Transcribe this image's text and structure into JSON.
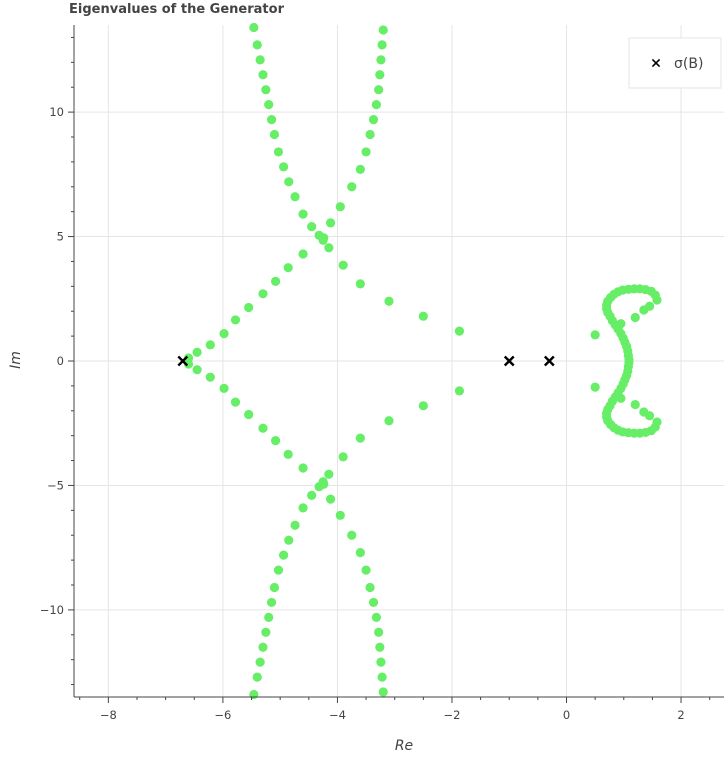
{
  "chart_data": {
    "type": "scatter",
    "title": "Eigenvalues of the Generator",
    "xlabel": "Re",
    "ylabel": "Im",
    "xlim": [
      -8.6,
      2.75
    ],
    "ylim": [
      -13.5,
      13.5
    ],
    "x_ticks": [
      -8,
      -6,
      -4,
      -2,
      0,
      2
    ],
    "x_tick_labels": [
      "−8",
      "−6",
      "−4",
      "−2",
      "0",
      "2"
    ],
    "y_ticks": [
      -10,
      -5,
      0,
      5,
      10
    ],
    "y_tick_labels": [
      "−10",
      "−5",
      "0",
      "5",
      "10"
    ],
    "grid": true,
    "legend_position": "top-right",
    "colors": {
      "generator": "#66ee66",
      "sigma_b": "#000000",
      "grid": "#e5e5e5",
      "axis": "#444444"
    },
    "series": [
      {
        "name": "",
        "marker": "circle",
        "color": "#66ee66",
        "points": [
          [
            -5.46,
            13.4
          ],
          [
            -5.4,
            12.7
          ],
          [
            -5.35,
            12.1
          ],
          [
            -5.3,
            11.5
          ],
          [
            -5.25,
            10.9
          ],
          [
            -5.2,
            10.3
          ],
          [
            -5.15,
            9.7
          ],
          [
            -5.1,
            9.1
          ],
          [
            -5.03,
            8.4
          ],
          [
            -4.94,
            7.8
          ],
          [
            -4.85,
            7.2
          ],
          [
            -4.74,
            6.6
          ],
          [
            -4.6,
            5.9
          ],
          [
            -4.45,
            5.4
          ],
          [
            -4.32,
            5.05
          ],
          [
            -4.25,
            4.85
          ],
          [
            -3.2,
            13.3
          ],
          [
            -3.22,
            12.7
          ],
          [
            -3.24,
            12.1
          ],
          [
            -3.26,
            11.5
          ],
          [
            -3.28,
            10.9
          ],
          [
            -3.32,
            10.3
          ],
          [
            -3.37,
            9.7
          ],
          [
            -3.43,
            9.1
          ],
          [
            -3.5,
            8.4
          ],
          [
            -3.6,
            7.7
          ],
          [
            -3.75,
            7.0
          ],
          [
            -3.95,
            6.2
          ],
          [
            -4.12,
            5.55
          ],
          [
            -4.24,
            4.95
          ],
          [
            -4.15,
            4.55
          ],
          [
            -3.9,
            3.85
          ],
          [
            -3.6,
            3.1
          ],
          [
            -3.1,
            2.4
          ],
          [
            -2.5,
            1.8
          ],
          [
            -1.87,
            1.2
          ],
          [
            -4.6,
            4.3
          ],
          [
            -4.86,
            3.75
          ],
          [
            -5.08,
            3.2
          ],
          [
            -5.3,
            2.7
          ],
          [
            -5.55,
            2.15
          ],
          [
            -5.78,
            1.65
          ],
          [
            -5.98,
            1.1
          ],
          [
            -6.22,
            0.65
          ],
          [
            -6.45,
            0.35
          ],
          [
            -6.6,
            0.12
          ],
          [
            -6.6,
            -0.12
          ],
          [
            -6.45,
            -0.35
          ],
          [
            -6.22,
            -0.65
          ],
          [
            -5.98,
            -1.1
          ],
          [
            -5.78,
            -1.65
          ],
          [
            -5.55,
            -2.15
          ],
          [
            -5.3,
            -2.7
          ],
          [
            -5.08,
            -3.2
          ],
          [
            -4.86,
            -3.75
          ],
          [
            -4.6,
            -4.3
          ],
          [
            -1.87,
            -1.2
          ],
          [
            -2.5,
            -1.8
          ],
          [
            -3.1,
            -2.4
          ],
          [
            -3.6,
            -3.1
          ],
          [
            -3.9,
            -3.85
          ],
          [
            -4.15,
            -4.55
          ],
          [
            -4.24,
            -4.95
          ],
          [
            -4.12,
            -5.55
          ],
          [
            -3.95,
            -6.2
          ],
          [
            -3.75,
            -7.0
          ],
          [
            -3.6,
            -7.7
          ],
          [
            -3.5,
            -8.4
          ],
          [
            -3.43,
            -9.1
          ],
          [
            -3.37,
            -9.7
          ],
          [
            -3.32,
            -10.3
          ],
          [
            -3.28,
            -10.9
          ],
          [
            -3.26,
            -11.5
          ],
          [
            -3.24,
            -12.1
          ],
          [
            -3.22,
            -12.7
          ],
          [
            -3.2,
            -13.3
          ],
          [
            -4.25,
            -4.85
          ],
          [
            -4.32,
            -5.05
          ],
          [
            -4.45,
            -5.4
          ],
          [
            -4.6,
            -5.9
          ],
          [
            -4.74,
            -6.6
          ],
          [
            -4.85,
            -7.2
          ],
          [
            -4.94,
            -7.8
          ],
          [
            -5.03,
            -8.4
          ],
          [
            -5.1,
            -9.1
          ],
          [
            -5.15,
            -9.7
          ],
          [
            -5.2,
            -10.3
          ],
          [
            -5.25,
            -10.9
          ],
          [
            -5.3,
            -11.5
          ],
          [
            -5.35,
            -12.1
          ],
          [
            -5.4,
            -12.7
          ],
          [
            -5.46,
            -13.4
          ],
          [
            0.5,
            1.05
          ],
          [
            0.5,
            -1.05
          ],
          [
            0.95,
            1.5
          ],
          [
            0.95,
            -1.5
          ],
          [
            1.2,
            1.75
          ],
          [
            1.2,
            -1.75
          ],
          [
            1.35,
            2.05
          ],
          [
            1.35,
            -2.05
          ],
          [
            1.45,
            2.2
          ],
          [
            1.45,
            -2.2
          ],
          [
            1.58,
            2.45
          ],
          [
            1.55,
            2.65
          ],
          [
            1.48,
            2.8
          ],
          [
            1.38,
            2.87
          ],
          [
            1.28,
            2.9
          ],
          [
            1.18,
            2.9
          ],
          [
            1.08,
            2.88
          ],
          [
            0.98,
            2.85
          ],
          [
            0.9,
            2.78
          ],
          [
            0.83,
            2.68
          ],
          [
            0.77,
            2.55
          ],
          [
            0.72,
            2.4
          ],
          [
            0.7,
            2.25
          ],
          [
            0.7,
            2.1
          ],
          [
            0.72,
            1.95
          ],
          [
            0.76,
            1.8
          ],
          [
            0.8,
            1.62
          ],
          [
            0.85,
            1.45
          ],
          [
            0.9,
            1.28
          ],
          [
            0.95,
            1.1
          ],
          [
            0.99,
            0.92
          ],
          [
            1.02,
            0.75
          ],
          [
            1.05,
            0.58
          ],
          [
            1.07,
            0.4
          ],
          [
            1.08,
            0.22
          ],
          [
            1.09,
            0.06
          ],
          [
            1.09,
            -0.06
          ],
          [
            1.08,
            -0.22
          ],
          [
            1.07,
            -0.4
          ],
          [
            1.05,
            -0.58
          ],
          [
            1.02,
            -0.75
          ],
          [
            0.99,
            -0.92
          ],
          [
            0.95,
            -1.1
          ],
          [
            0.9,
            -1.28
          ],
          [
            0.85,
            -1.45
          ],
          [
            0.8,
            -1.62
          ],
          [
            0.76,
            -1.8
          ],
          [
            0.72,
            -1.95
          ],
          [
            0.7,
            -2.1
          ],
          [
            0.7,
            -2.25
          ],
          [
            0.72,
            -2.4
          ],
          [
            0.77,
            -2.55
          ],
          [
            0.83,
            -2.68
          ],
          [
            0.9,
            -2.78
          ],
          [
            0.98,
            -2.85
          ],
          [
            1.08,
            -2.88
          ],
          [
            1.18,
            -2.9
          ],
          [
            1.28,
            -2.9
          ],
          [
            1.38,
            -2.87
          ],
          [
            1.48,
            -2.8
          ],
          [
            1.55,
            -2.65
          ],
          [
            1.58,
            -2.45
          ]
        ]
      },
      {
        "name": "σ(B)",
        "marker": "x",
        "color": "#000000",
        "points": [
          [
            -6.7,
            0
          ],
          [
            -1.0,
            0
          ],
          [
            -0.3,
            0
          ]
        ]
      }
    ]
  }
}
